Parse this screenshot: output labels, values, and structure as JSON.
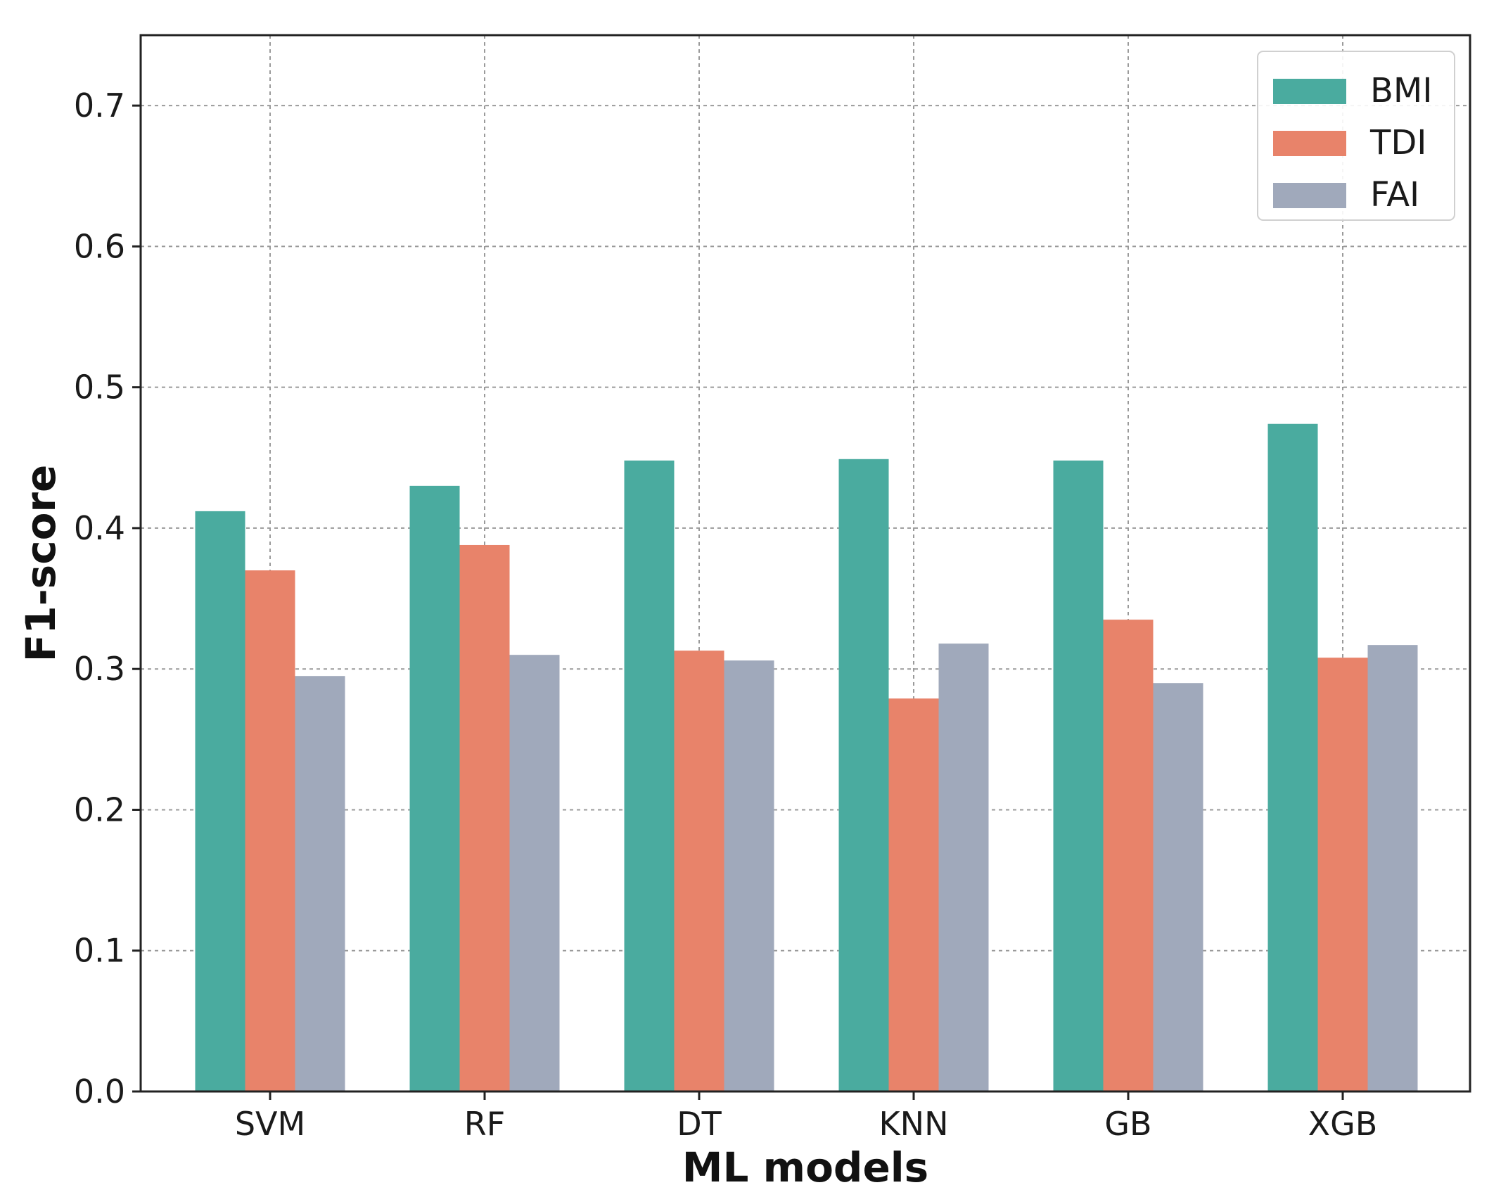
{
  "chart_data": {
    "type": "bar",
    "title": "",
    "xlabel": "ML models",
    "ylabel": "F1-score",
    "categories": [
      "SVM",
      "RF",
      "DT",
      "KNN",
      "GB",
      "XGB"
    ],
    "series": [
      {
        "name": "BMI",
        "color": "#4AAB9F",
        "values": [
          0.412,
          0.43,
          0.448,
          0.449,
          0.448,
          0.474
        ]
      },
      {
        "name": "TDI",
        "color": "#E8836A",
        "values": [
          0.37,
          0.388,
          0.313,
          0.279,
          0.335,
          0.308
        ]
      },
      {
        "name": "FAI",
        "color": "#A0A9BB",
        "values": [
          0.295,
          0.31,
          0.306,
          0.318,
          0.29,
          0.317
        ]
      }
    ],
    "ylim": [
      0.0,
      0.75
    ],
    "yticks": [
      "0.0",
      "0.1",
      "0.2",
      "0.3",
      "0.4",
      "0.5",
      "0.6",
      "0.7"
    ],
    "grid": true,
    "legend_position": "top-right"
  }
}
